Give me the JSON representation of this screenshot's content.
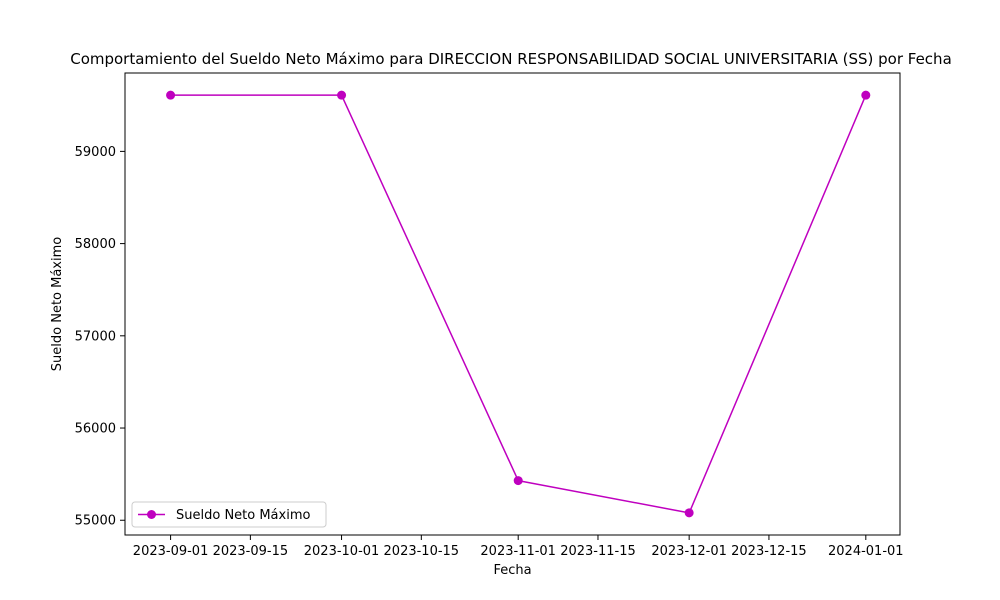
{
  "chart_data": {
    "type": "line",
    "title": "Comportamiento del Sueldo Neto Máximo para DIRECCION RESPONSABILIDAD SOCIAL UNIVERSITARIA (SS) por Fecha",
    "xlabel": "Fecha",
    "ylabel": "Sueldo Neto Máximo",
    "x": [
      "2023-09-01",
      "2023-10-01",
      "2023-11-01",
      "2023-12-01",
      "2024-01-01"
    ],
    "series": [
      {
        "name": "Sueldo Neto Máximo",
        "color": "#bf00bf",
        "marker": "circle",
        "values": [
          59610,
          59610,
          55430,
          55080,
          59610
        ]
      }
    ],
    "xticks": [
      "2023-09-01",
      "2023-09-15",
      "2023-10-01",
      "2023-10-15",
      "2023-11-01",
      "2023-11-15",
      "2023-12-01",
      "2023-12-15",
      "2024-01-01"
    ],
    "xlim": [
      "2023-08-24",
      "2024-01-07"
    ],
    "yticks": [
      55000,
      56000,
      57000,
      58000,
      59000
    ],
    "ylim": [
      54840,
      59850
    ],
    "grid": false,
    "legend_position": "lower-left"
  }
}
